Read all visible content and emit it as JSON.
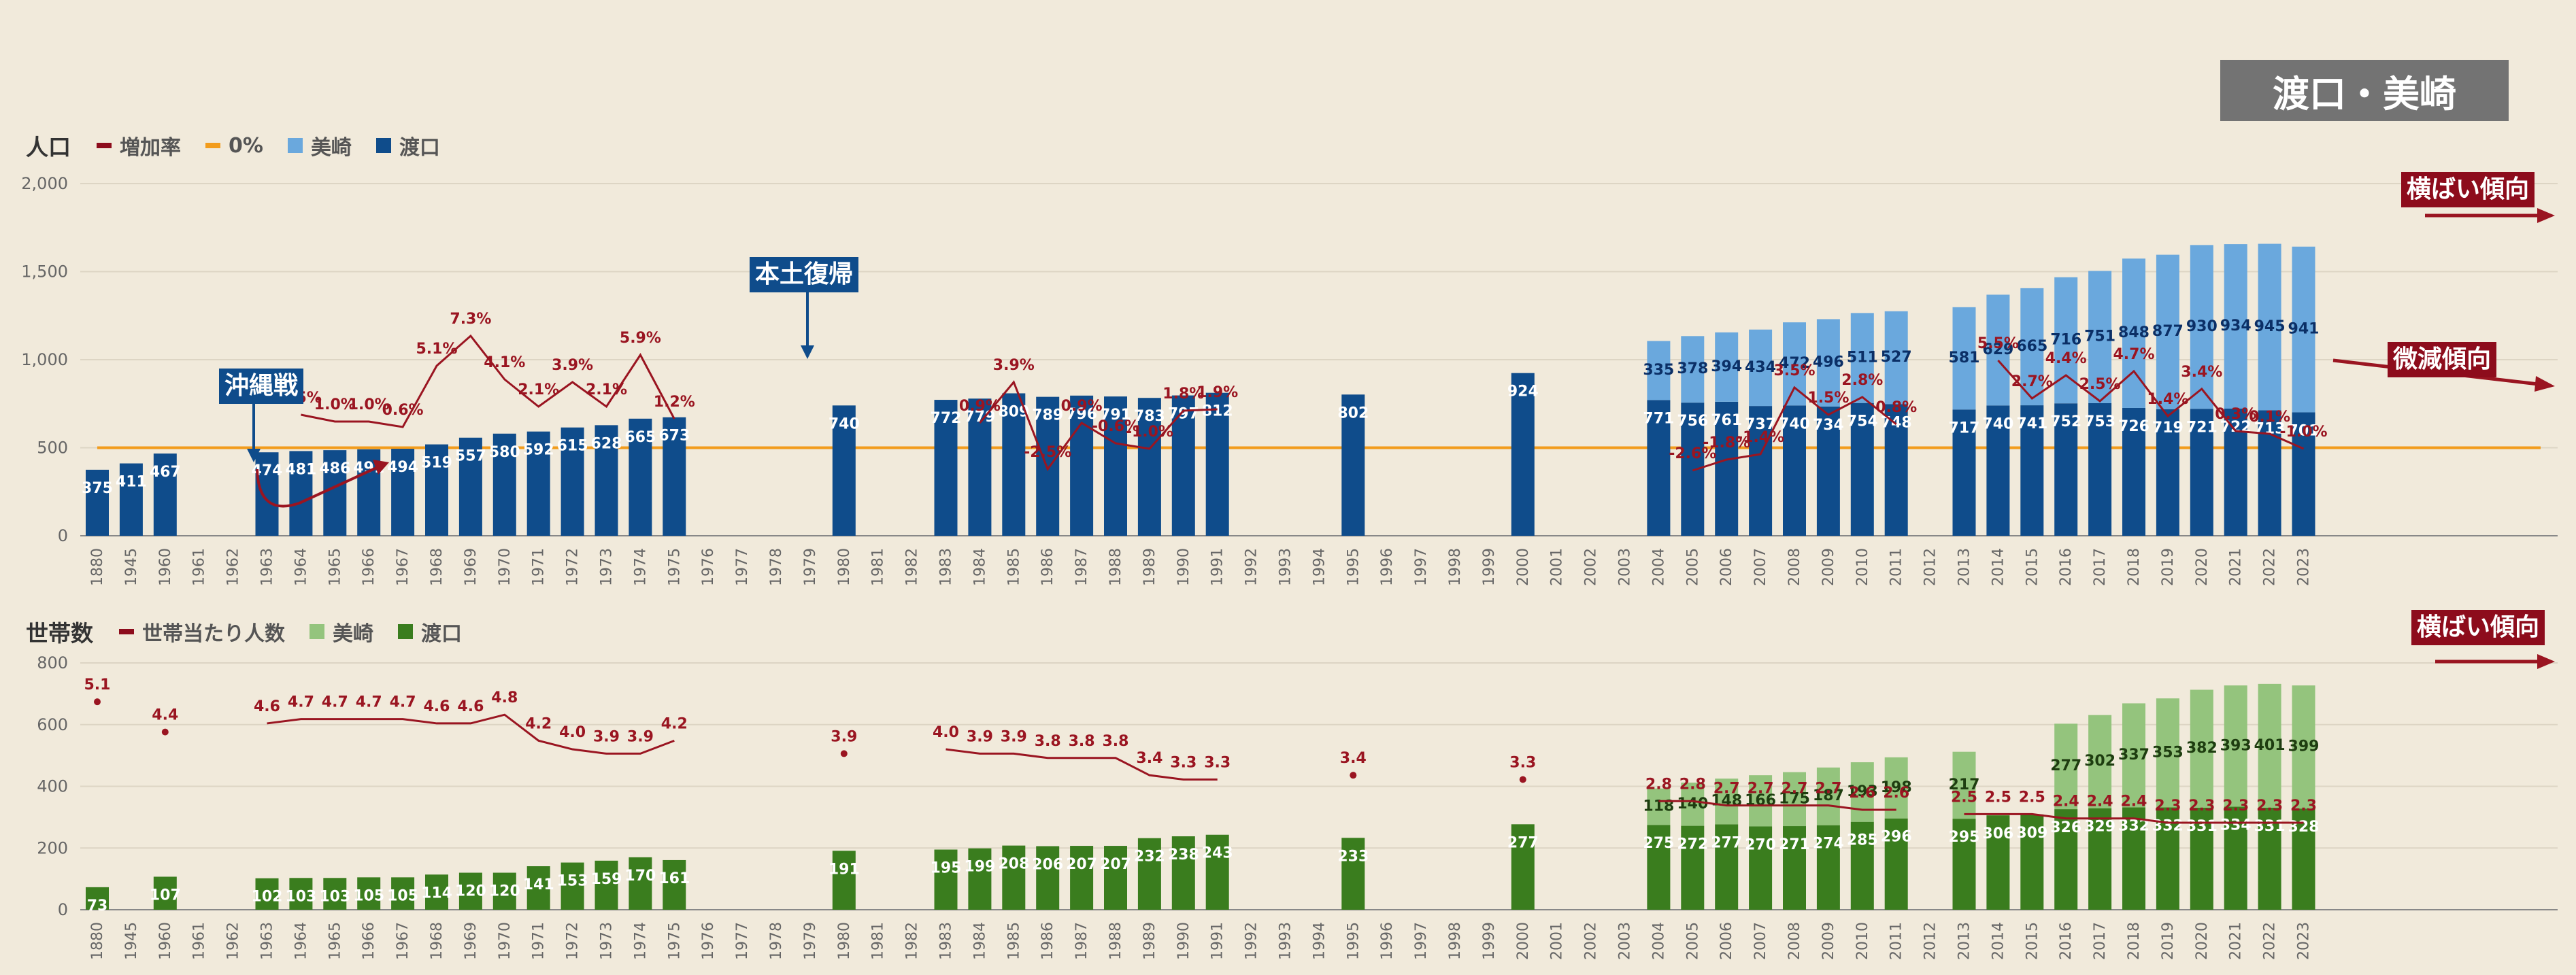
{
  "title": "渡口・美崎",
  "top_legend": {
    "title": "人口",
    "items": [
      {
        "label": "増加率",
        "color": "#8d0c1c",
        "kind": "line"
      },
      {
        "label": "0%",
        "color": "#f29c1c",
        "kind": "line"
      },
      {
        "label": "美崎",
        "color": "#6aa8dd",
        "kind": "box"
      },
      {
        "label": "渡口",
        "color": "#0f4c8b",
        "kind": "box"
      }
    ]
  },
  "bottom_legend": {
    "title": "世帯数",
    "items": [
      {
        "label": "世帯当たり人数",
        "color": "#8d0c1c",
        "kind": "line"
      },
      {
        "label": "美崎",
        "color": "#94c47d",
        "kind": "box"
      },
      {
        "label": "渡口",
        "color": "#3a7d1e",
        "kind": "box"
      }
    ]
  },
  "annotations": {
    "okinawa_war": "沖縄戦",
    "reversion": "本土復帰",
    "flat_trend_pop": "横ばい傾向",
    "slight_decline": "微減傾向",
    "flat_trend_hh": "横ばい傾向"
  },
  "chart_data": [
    {
      "type": "bar",
      "name": "population",
      "ylabel": "人口",
      "ylim": [
        0,
        2000
      ],
      "yticks": [
        "0",
        "500",
        "1,000",
        "1,500",
        "2,000"
      ],
      "reference_line": 500,
      "categories": [
        "1880",
        "1945",
        "1960",
        "1961",
        "1962",
        "1963",
        "1964",
        "1965",
        "1966",
        "1967",
        "1968",
        "1969",
        "1970",
        "1971",
        "1972",
        "1973",
        "1974",
        "1975",
        "1976",
        "1977",
        "1978",
        "1979",
        "1980",
        "1981",
        "1982",
        "1983",
        "1984",
        "1985",
        "1986",
        "1987",
        "1988",
        "1989",
        "1990",
        "1991",
        "1992",
        "1993",
        "1994",
        "1995",
        "1996",
        "1997",
        "1998",
        "1999",
        "2000",
        "2001",
        "2002",
        "2003",
        "2004",
        "2005",
        "2006",
        "2007",
        "2008",
        "2009",
        "2010",
        "2011",
        "2012",
        "2013",
        "2014",
        "2015",
        "2016",
        "2017",
        "2018",
        "2019",
        "2020",
        "2021",
        "2022",
        "2023"
      ],
      "series": [
        {
          "name": "渡口",
          "values": [
            375,
            411,
            467,
            null,
            null,
            474,
            481,
            486,
            491,
            494,
            519,
            557,
            580,
            592,
            615,
            628,
            665,
            673,
            null,
            null,
            null,
            null,
            740,
            null,
            null,
            772,
            779,
            809,
            789,
            796,
            791,
            783,
            797,
            812,
            null,
            null,
            null,
            802,
            null,
            null,
            null,
            null,
            924,
            null,
            null,
            null,
            771,
            756,
            761,
            737,
            740,
            734,
            754,
            748,
            null,
            717,
            740,
            741,
            752,
            753,
            726,
            719,
            721,
            722,
            713,
            701
          ]
        },
        {
          "name": "美崎",
          "values": [
            null,
            null,
            null,
            null,
            null,
            null,
            null,
            null,
            null,
            null,
            null,
            null,
            null,
            null,
            null,
            null,
            null,
            null,
            null,
            null,
            null,
            null,
            null,
            null,
            null,
            null,
            null,
            null,
            null,
            null,
            null,
            null,
            null,
            null,
            null,
            null,
            null,
            null,
            null,
            null,
            null,
            null,
            null,
            null,
            null,
            null,
            335,
            378,
            394,
            434,
            472,
            496,
            511,
            527,
            null,
            581,
            629,
            665,
            716,
            751,
            848,
            877,
            930,
            934,
            945,
            941
          ]
        },
        {
          "name": "増加率",
          "values": [
            null,
            null,
            null,
            null,
            null,
            null,
            1.5,
            1.0,
            1.0,
            0.6,
            5.1,
            7.3,
            4.1,
            2.1,
            3.9,
            2.1,
            5.9,
            1.2,
            null,
            null,
            null,
            null,
            null,
            null,
            null,
            null,
            0.9,
            3.9,
            -2.5,
            0.9,
            -0.6,
            -1.0,
            1.8,
            1.9,
            null,
            null,
            null,
            null,
            null,
            null,
            null,
            null,
            null,
            null,
            null,
            null,
            null,
            -2.6,
            -1.8,
            -1.4,
            3.5,
            1.5,
            2.8,
            0.8,
            null,
            null,
            5.5,
            2.7,
            4.4,
            2.5,
            4.7,
            1.4,
            3.4,
            0.3,
            0.1,
            -1.0
          ]
        }
      ]
    },
    {
      "type": "bar",
      "name": "households",
      "ylabel": "世帯数",
      "ylim": [
        0,
        800
      ],
      "yticks": [
        "0",
        "200",
        "400",
        "600",
        "800"
      ],
      "categories": [
        "1880",
        "1945",
        "1960",
        "1961",
        "1962",
        "1963",
        "1964",
        "1965",
        "1966",
        "1967",
        "1968",
        "1969",
        "1970",
        "1971",
        "1972",
        "1973",
        "1974",
        "1975",
        "1976",
        "1977",
        "1978",
        "1979",
        "1980",
        "1981",
        "1982",
        "1983",
        "1984",
        "1985",
        "1986",
        "1987",
        "1988",
        "1989",
        "1990",
        "1991",
        "1992",
        "1993",
        "1994",
        "1995",
        "1996",
        "1997",
        "1998",
        "1999",
        "2000",
        "2001",
        "2002",
        "2003",
        "2004",
        "2005",
        "2006",
        "2007",
        "2008",
        "2009",
        "2010",
        "2011",
        "2012",
        "2013",
        "2014",
        "2015",
        "2016",
        "2017",
        "2018",
        "2019",
        "2020",
        "2021",
        "2022",
        "2023"
      ],
      "series": [
        {
          "name": "渡口",
          "values": [
            73,
            null,
            107,
            null,
            null,
            102,
            103,
            103,
            105,
            105,
            114,
            120,
            120,
            141,
            153,
            159,
            170,
            161,
            null,
            null,
            null,
            null,
            191,
            null,
            null,
            195,
            199,
            208,
            206,
            207,
            207,
            232,
            238,
            243,
            null,
            null,
            null,
            233,
            null,
            null,
            null,
            null,
            277,
            null,
            null,
            null,
            275,
            272,
            277,
            270,
            271,
            274,
            285,
            296,
            null,
            295,
            306,
            309,
            326,
            329,
            332,
            332,
            331,
            334,
            331,
            328
          ]
        },
        {
          "name": "美崎",
          "values": [
            null,
            null,
            null,
            null,
            null,
            null,
            null,
            null,
            null,
            null,
            null,
            null,
            null,
            null,
            null,
            null,
            null,
            null,
            null,
            null,
            null,
            null,
            null,
            null,
            null,
            null,
            null,
            null,
            null,
            null,
            null,
            null,
            null,
            null,
            null,
            null,
            null,
            null,
            null,
            null,
            null,
            null,
            null,
            null,
            null,
            null,
            118,
            140,
            148,
            166,
            175,
            187,
            193,
            198,
            null,
            217,
            null,
            null,
            277,
            302,
            337,
            353,
            382,
            393,
            401,
            399
          ]
        },
        {
          "name": "世帯当たり人数",
          "values": [
            5.1,
            null,
            4.4,
            null,
            null,
            4.6,
            4.7,
            4.7,
            4.7,
            4.7,
            4.6,
            4.6,
            4.8,
            4.2,
            4.0,
            3.9,
            3.9,
            4.2,
            null,
            null,
            null,
            null,
            3.9,
            null,
            null,
            4.0,
            3.9,
            3.9,
            3.8,
            3.8,
            3.8,
            3.4,
            3.3,
            3.3,
            null,
            null,
            null,
            3.4,
            null,
            null,
            null,
            null,
            3.3,
            null,
            null,
            null,
            2.8,
            2.8,
            2.7,
            2.7,
            2.7,
            2.7,
            2.6,
            2.6,
            null,
            2.5,
            2.5,
            2.5,
            2.4,
            2.4,
            2.4,
            2.3,
            2.3,
            2.3,
            2.3,
            2.3
          ]
        }
      ]
    }
  ]
}
